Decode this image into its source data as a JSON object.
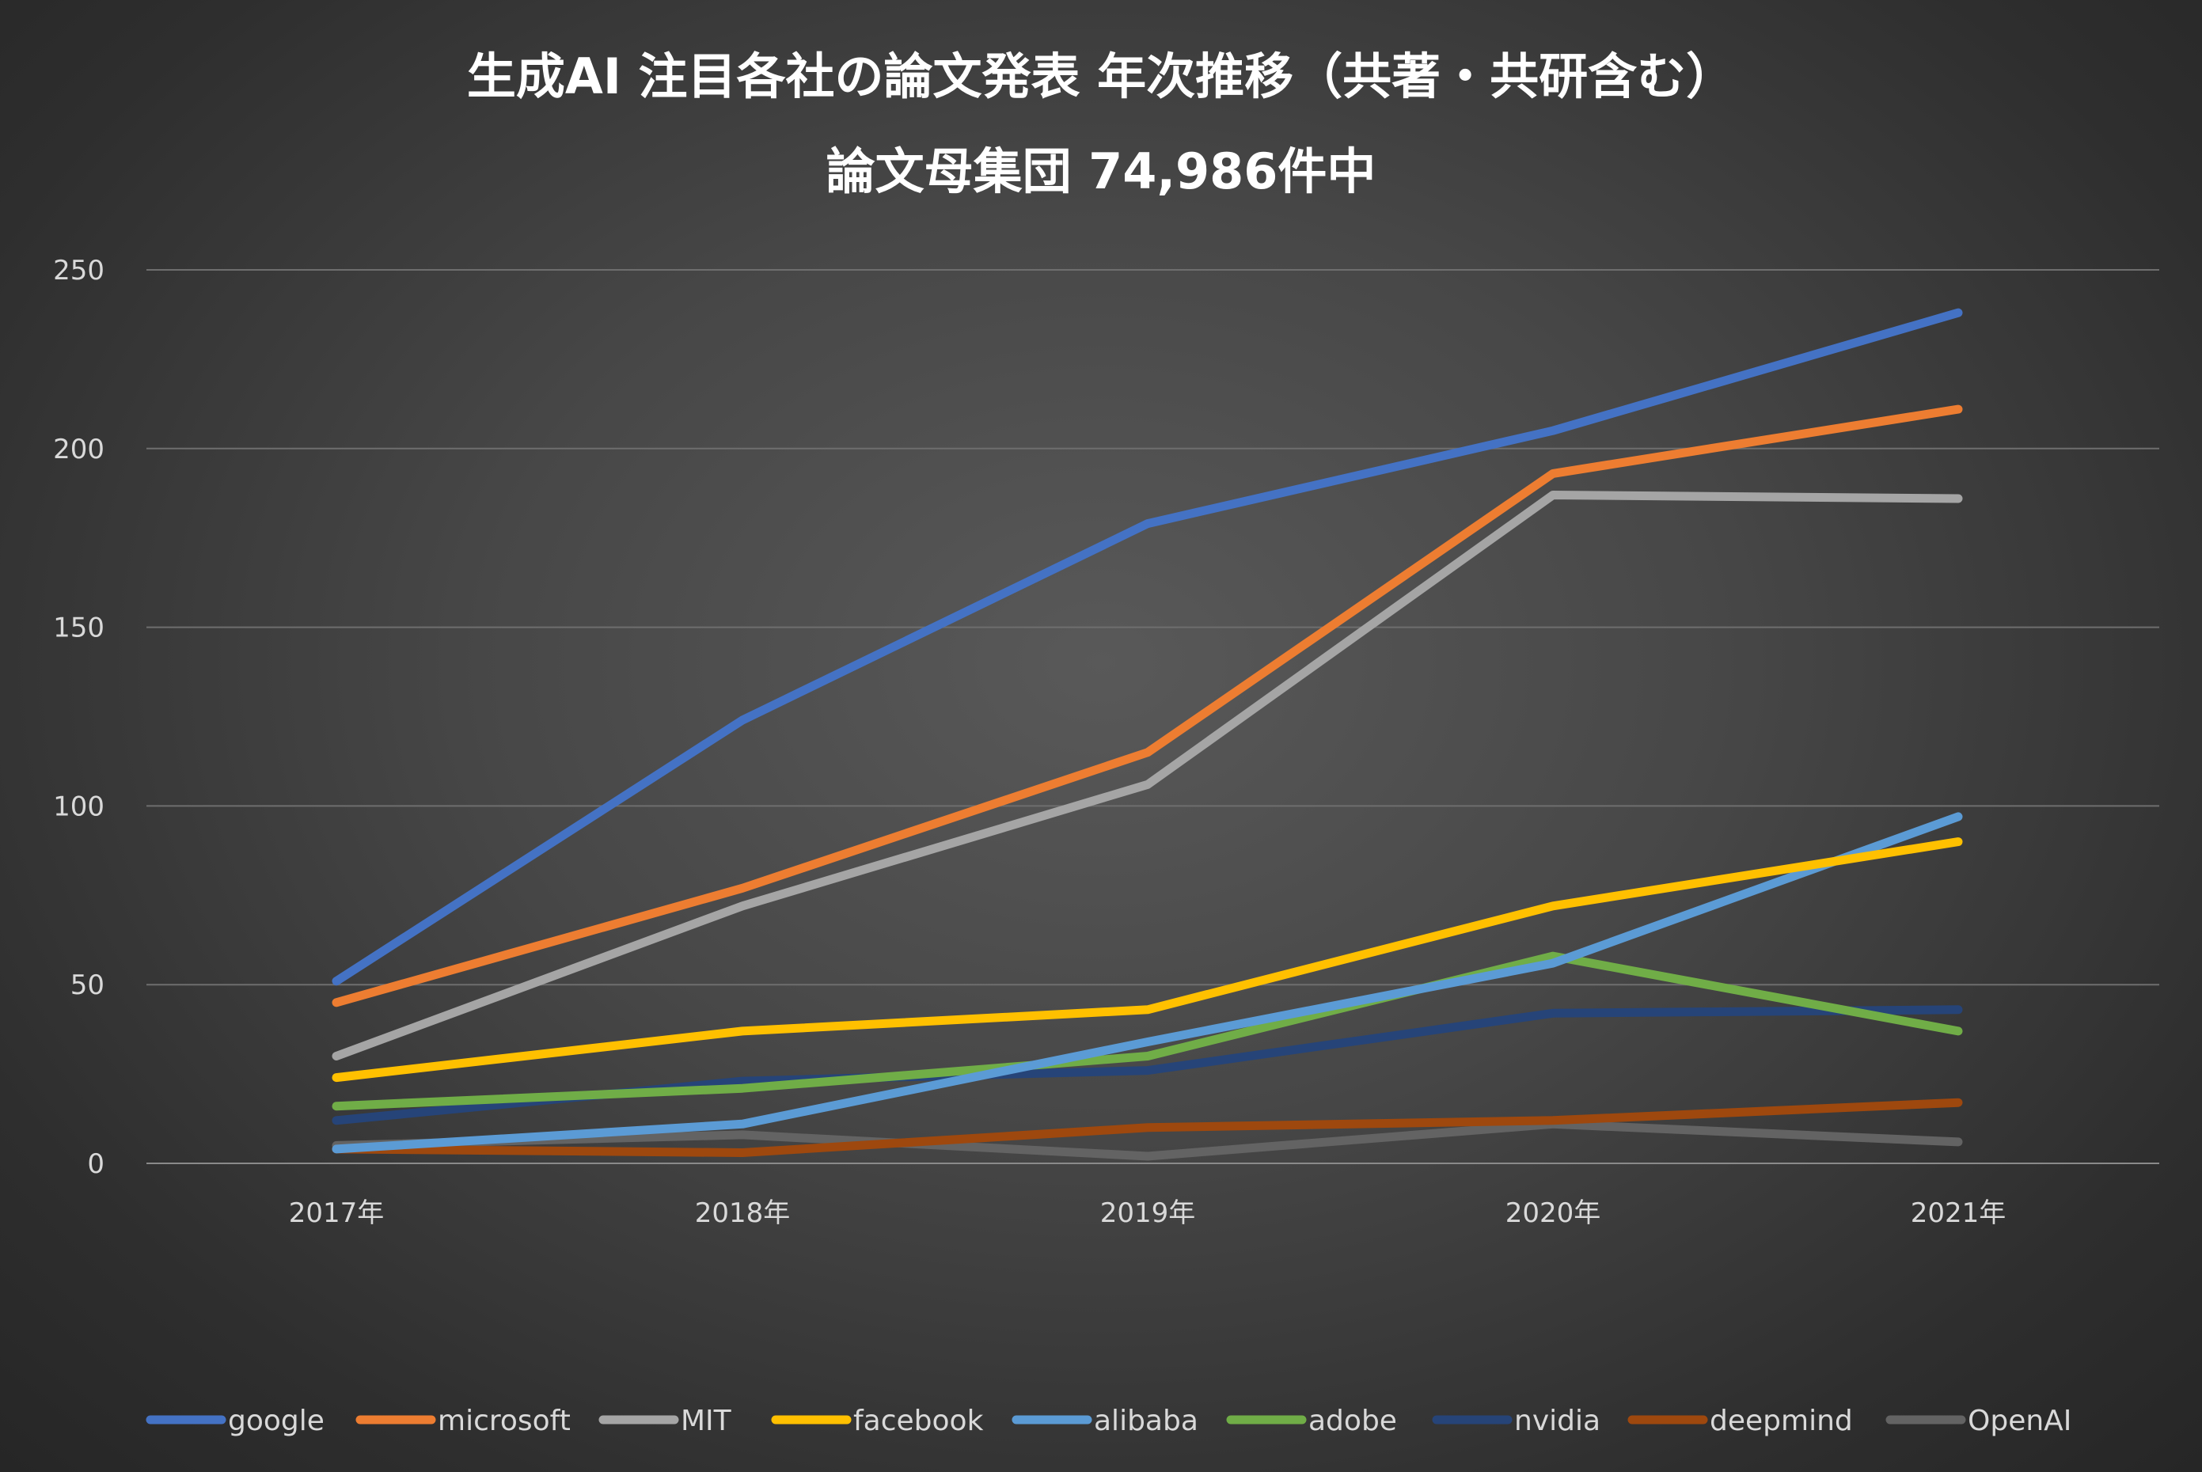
{
  "chart_data": {
    "type": "line",
    "title": "生成AI 注目各社の論文発表 年次推移（共著・共研含む）",
    "subtitle": "論文母集団 74,986件中",
    "xlabel": "",
    "ylabel": "",
    "categories": [
      "2017年",
      "2018年",
      "2019年",
      "2020年",
      "2021年"
    ],
    "ylim": [
      0,
      250
    ],
    "yticks": [
      0,
      50,
      100,
      150,
      200,
      250
    ],
    "grid": true,
    "legend_position": "bottom",
    "series": [
      {
        "name": "google",
        "color": "#4472C4",
        "values": [
          51,
          124,
          179,
          205,
          238
        ]
      },
      {
        "name": "microsoft",
        "color": "#ED7D31",
        "values": [
          45,
          77,
          115,
          193,
          211
        ]
      },
      {
        "name": "MIT",
        "color": "#A5A5A5",
        "values": [
          30,
          72,
          106,
          187,
          186
        ]
      },
      {
        "name": "facebook",
        "color": "#FFC000",
        "values": [
          24,
          37,
          43,
          72,
          90
        ]
      },
      {
        "name": "alibaba",
        "color": "#5B9BD5",
        "values": [
          4,
          11,
          34,
          56,
          97
        ]
      },
      {
        "name": "adobe",
        "color": "#70AD47",
        "values": [
          16,
          21,
          30,
          58,
          37
        ]
      },
      {
        "name": "nvidia",
        "color": "#264478",
        "values": [
          12,
          23,
          26,
          42,
          43
        ]
      },
      {
        "name": "deepmind",
        "color": "#9E480E",
        "values": [
          4,
          3,
          10,
          12,
          17
        ]
      },
      {
        "name": "OpenAI",
        "color": "#636363",
        "values": [
          5,
          8,
          2,
          11,
          6
        ]
      }
    ]
  }
}
